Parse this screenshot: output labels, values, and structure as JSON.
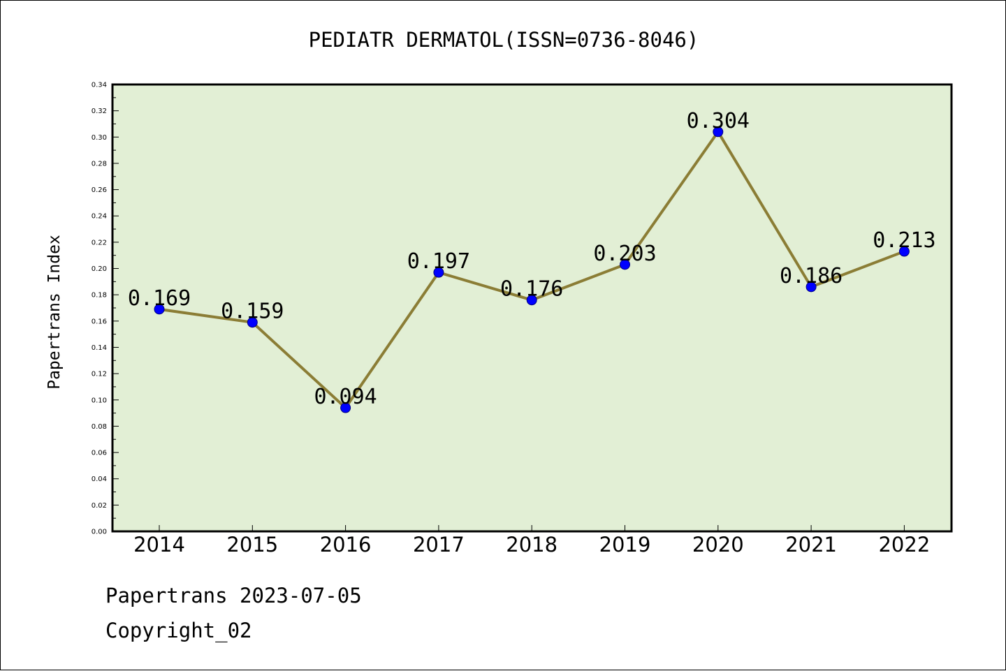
{
  "chart_data": {
    "type": "line",
    "title": "PEDIATR DERMATOL(ISSN=0736-8046)",
    "xlabel": "",
    "ylabel": "Papertrans Index",
    "categories": [
      "2014",
      "2015",
      "2016",
      "2017",
      "2018",
      "2019",
      "2020",
      "2021",
      "2022"
    ],
    "values": [
      0.169,
      0.159,
      0.094,
      0.197,
      0.176,
      0.203,
      0.304,
      0.186,
      0.213
    ],
    "data_labels": [
      "0.169",
      "0.159",
      "0.094",
      "0.197",
      "0.176",
      "0.203",
      "0.304",
      "0.186",
      "0.213"
    ],
    "ylim": [
      0,
      0.34
    ],
    "yticks": [
      "0.00",
      "0.02",
      "0.04",
      "0.06",
      "0.08",
      "0.10",
      "0.12",
      "0.14",
      "0.16",
      "0.18",
      "0.20",
      "0.22",
      "0.24",
      "0.26",
      "0.28",
      "0.30",
      "0.32",
      "0.34"
    ],
    "grid": false,
    "colors": {
      "plot_background": "#e2efd5",
      "line": "#8b7d35",
      "marker": "#0000ff"
    }
  },
  "footer": {
    "date_line": "Papertrans 2023-07-05",
    "copyright": "Copyright_02"
  }
}
